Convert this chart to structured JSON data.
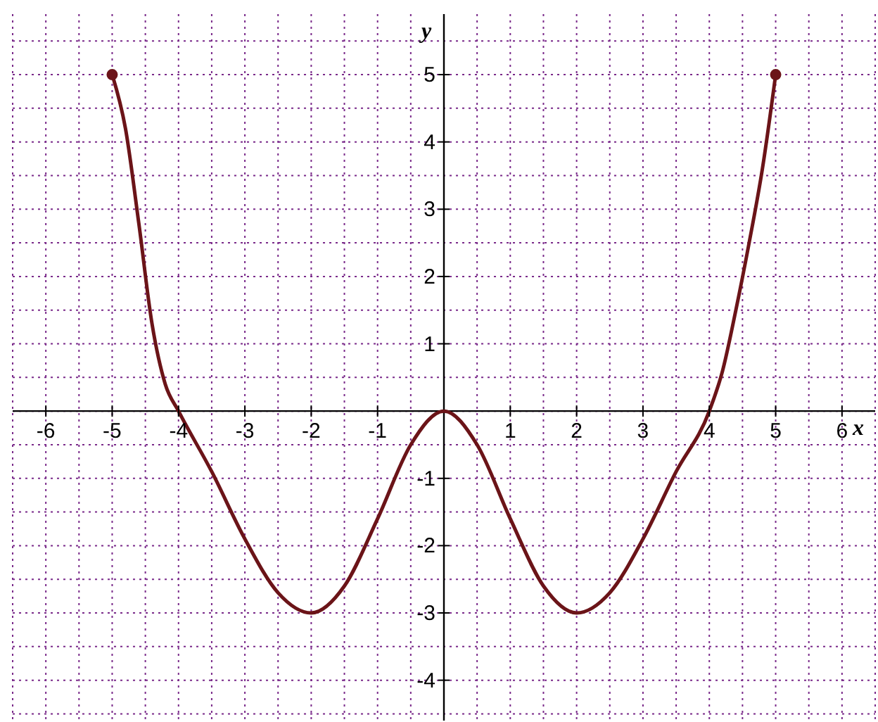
{
  "chart_data": {
    "type": "line",
    "xlabel": "x",
    "ylabel": "y",
    "xlim": [
      -6.5,
      6.5
    ],
    "ylim": [
      -4.6,
      5.9
    ],
    "xticks": [
      {
        "value": -6.5,
        "label": null
      },
      -6,
      {
        "value": -5.5,
        "label": null
      },
      -5,
      {
        "value": -4.5,
        "label": null
      },
      -4,
      {
        "value": -3.5,
        "label": null
      },
      -3,
      {
        "value": -2.5,
        "label": null
      },
      -2,
      {
        "value": -1.5,
        "label": null
      },
      -1,
      {
        "value": -0.5,
        "label": null
      },
      {
        "value": 0,
        "label": null
      },
      {
        "value": 0.5,
        "label": null
      },
      1,
      {
        "value": 1.5,
        "label": null
      },
      2,
      {
        "value": 2.5,
        "label": null
      },
      3,
      {
        "value": 3.5,
        "label": null
      },
      4,
      {
        "value": 4.5,
        "label": null
      },
      5,
      {
        "value": 5.5,
        "label": null
      },
      6,
      {
        "value": 6.5,
        "label": null
      }
    ],
    "yticks": [
      {
        "value": -4.5,
        "label": null
      },
      -4,
      {
        "value": -3.5,
        "label": null
      },
      -3,
      {
        "value": -2.5,
        "label": null
      },
      -2,
      {
        "value": -1.5,
        "label": null
      },
      -1,
      {
        "value": -0.5,
        "label": null
      },
      {
        "value": 0,
        "label": null
      },
      {
        "value": 0.5,
        "label": null
      },
      1,
      {
        "value": 1.5,
        "label": null
      },
      2,
      {
        "value": 2.5,
        "label": null
      },
      3,
      {
        "value": 3.5,
        "label": null
      },
      4,
      {
        "value": 4.5,
        "label": null
      },
      5,
      {
        "value": 5.5,
        "label": null
      }
    ],
    "grid": true,
    "line_style": "solid",
    "marker": "none",
    "series": [
      {
        "color": "#6b1418",
        "x": [
          -5,
          -4.8,
          -4.6,
          -4.4,
          -4.2,
          -4,
          -3.5,
          -3,
          -2.5,
          -2,
          -1.5,
          -1,
          -0.5,
          0,
          0.5,
          1,
          1.5,
          2,
          2.5,
          3,
          3.5,
          4,
          4.2,
          4.4,
          4.6,
          4.8,
          5
        ],
        "values": [
          5,
          4.2,
          2.8,
          1.3,
          0.4,
          0,
          -0.9,
          -1.9,
          -2.7,
          -3,
          -2.6,
          -1.6,
          -0.5,
          0,
          -0.5,
          -1.6,
          -2.6,
          -3,
          -2.7,
          -1.9,
          -0.9,
          0,
          0.6,
          1.5,
          2.5,
          3.6,
          5
        ]
      },
      {
        "type": "scatter",
        "color": "#6b1418",
        "marker": "circle",
        "x": [
          -5,
          5
        ],
        "values": [
          5,
          5
        ]
      }
    ]
  }
}
